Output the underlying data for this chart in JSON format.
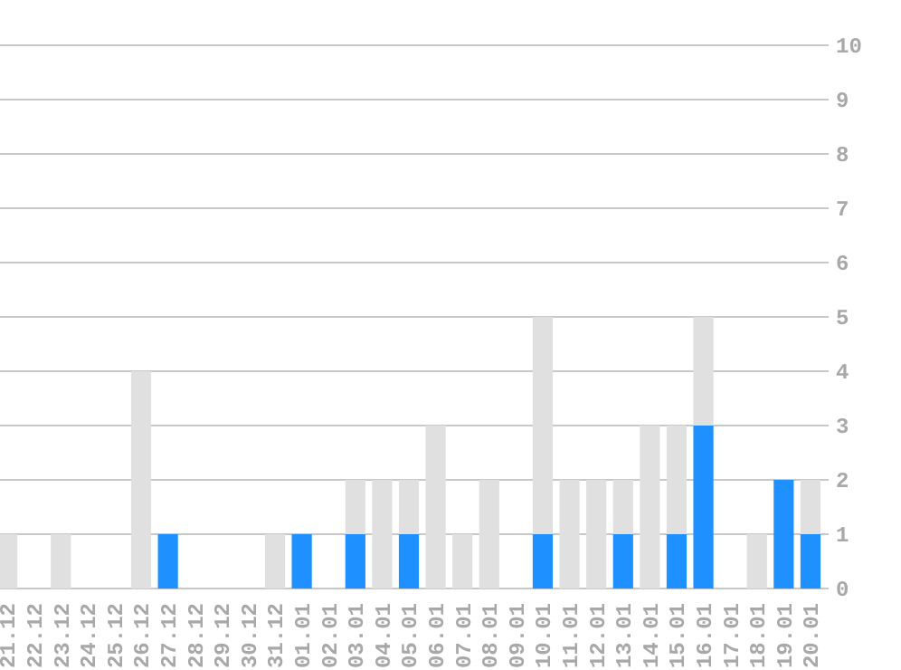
{
  "chart_data": {
    "type": "bar",
    "stacked": true,
    "categories": [
      "21.12",
      "22.12",
      "23.12",
      "24.12",
      "25.12",
      "26.12",
      "27.12",
      "28.12",
      "29.12",
      "30.12",
      "31.12",
      "01.01",
      "02.01",
      "03.01",
      "04.01",
      "05.01",
      "06.01",
      "07.01",
      "08.01",
      "09.01",
      "10.01",
      "11.01",
      "12.01",
      "13.01",
      "14.01",
      "15.01",
      "16.01",
      "17.01",
      "18.01",
      "19.01",
      "20.01"
    ],
    "series": [
      {
        "color": "#1e90ff",
        "values": [
          0,
          0,
          0,
          0,
          0,
          0,
          1,
          0,
          0,
          0,
          0,
          1,
          0,
          1,
          0,
          1,
          0,
          0,
          0,
          0,
          1,
          0,
          0,
          1,
          0,
          1,
          3,
          0,
          0,
          2,
          1
        ]
      },
      {
        "color": "#e0e0e0",
        "values": [
          1,
          0,
          1,
          0,
          0,
          4,
          0,
          0,
          0,
          0,
          1,
          0,
          0,
          1,
          2,
          1,
          3,
          1,
          2,
          0,
          4,
          2,
          2,
          1,
          3,
          2,
          2,
          0,
          1,
          0,
          1
        ]
      }
    ],
    "ylim": [
      0,
      10
    ],
    "yticks": [
      0,
      1,
      2,
      3,
      4,
      5,
      6,
      7,
      8,
      9,
      10
    ],
    "grid": "y"
  }
}
